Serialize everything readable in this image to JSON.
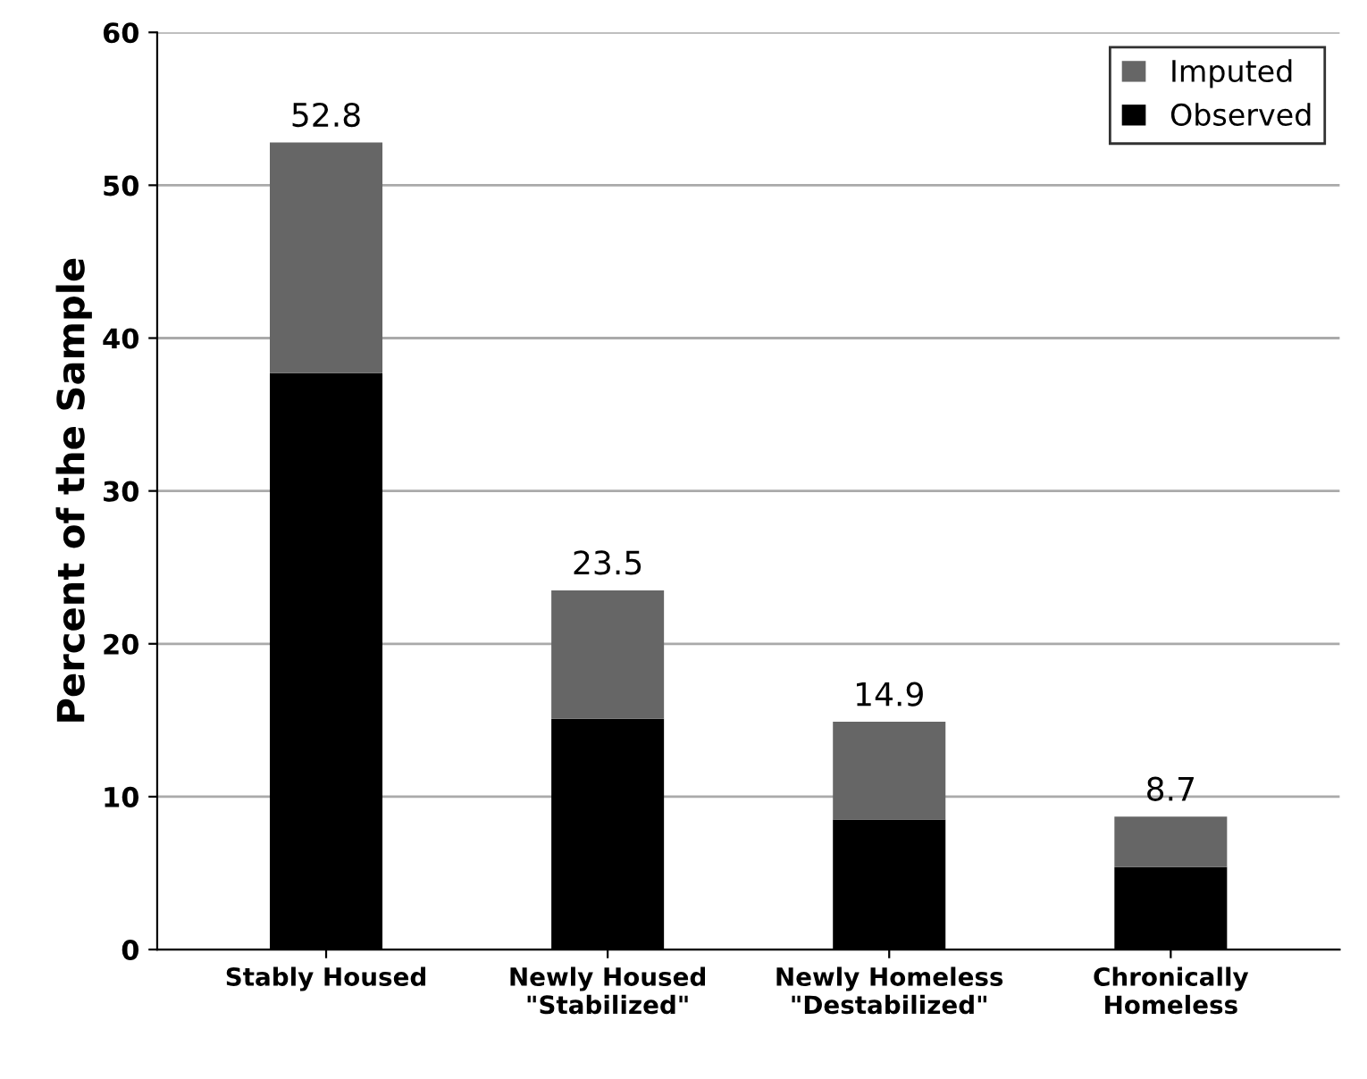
{
  "chart_data": {
    "type": "bar",
    "stacked": true,
    "ylabel": "Percent of the Sample",
    "categories": [
      "Stably Housed",
      "Newly Housed\n\"Stabilized\"",
      "Newly Homeless\n\"Destabilized\"",
      "Chronically\nHomeless"
    ],
    "series": [
      {
        "name": "Observed",
        "color": "#000000",
        "values": [
          37.7,
          15.1,
          8.5,
          5.4
        ]
      },
      {
        "name": "Imputed",
        "color": "#666666",
        "values": [
          15.1,
          8.4,
          6.4,
          3.3
        ]
      }
    ],
    "totals": [
      "52.8",
      "23.5",
      "14.9",
      "8.7"
    ],
    "ylim": [
      0,
      60
    ],
    "yticks": [
      0,
      10,
      20,
      30,
      40,
      50,
      60
    ],
    "grid": "y",
    "legend": "top right"
  }
}
